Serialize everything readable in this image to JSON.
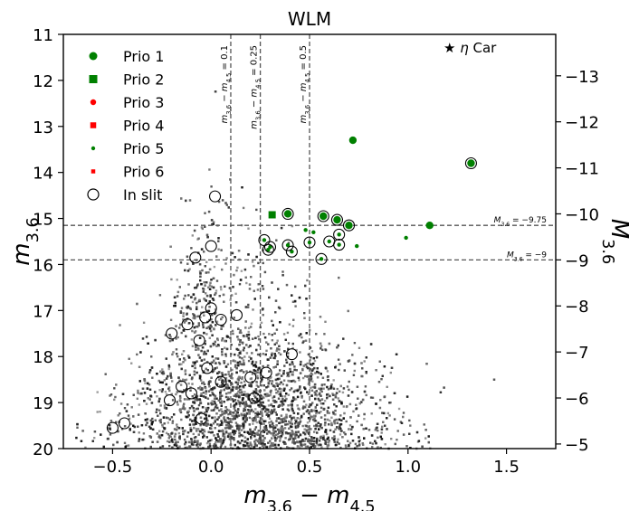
{
  "chart_data": {
    "type": "scatter",
    "title": "WLM",
    "xlabel": "m_{3.6} - m_{4.5}",
    "ylabel": "m_{3.6}",
    "ylabel_right": "M_{3.6}",
    "xlim": [
      -0.75,
      1.75
    ],
    "ylim": [
      20,
      11
    ],
    "right_ylim": [
      -4.9,
      -13.9
    ],
    "x_ticks": [
      -0.5,
      0.0,
      0.5,
      1.0,
      1.5
    ],
    "x_tick_labels": [
      "−0.5",
      "0.0",
      "0.5",
      "1.0",
      "1.5"
    ],
    "y_ticks": [
      11,
      12,
      13,
      14,
      15,
      16,
      17,
      18,
      19,
      20
    ],
    "y_tick_labels": [
      "11",
      "12",
      "13",
      "14",
      "15",
      "16",
      "17",
      "18",
      "19",
      "20"
    ],
    "right_ticks": [
      -5,
      -6,
      -7,
      -8,
      -9,
      -10,
      -11,
      -12,
      -13
    ],
    "right_tick_labels": [
      "−5",
      "−6",
      "−7",
      "−8",
      "−9",
      "−10",
      "−11",
      "−12",
      "−13"
    ],
    "grid": false,
    "legend_position": "top-left",
    "legend": [
      {
        "label": "Prio 1",
        "marker": "circle",
        "color": "#008000",
        "size": "large"
      },
      {
        "label": "Prio 2",
        "marker": "square",
        "color": "#008000",
        "size": "large"
      },
      {
        "label": "Prio 3",
        "marker": "circle",
        "color": "#ff0000",
        "size": "medium"
      },
      {
        "label": "Prio 4",
        "marker": "square",
        "color": "#ff0000",
        "size": "medium"
      },
      {
        "label": "Prio 5",
        "marker": "circle",
        "color": "#008000",
        "size": "small"
      },
      {
        "label": "Prio 6",
        "marker": "square",
        "color": "#ff0000",
        "size": "small"
      },
      {
        "label": "In slit",
        "marker": "open-circle",
        "color": "#000000",
        "size": "large"
      }
    ],
    "vertical_lines": [
      {
        "x": 0.1,
        "label": "m_{3.6} - m_{4.5} = 0.1"
      },
      {
        "x": 0.25,
        "label": "m_{3.6} - m_{4.5} = 0.25"
      },
      {
        "x": 0.5,
        "label": "m_{3.6} - m_{4.5} = 0.5"
      }
    ],
    "horizontal_lines": [
      {
        "y": 15.15,
        "label": "M_{3.6} = −9.75"
      },
      {
        "y": 15.9,
        "label": "M_{3.6} = −9"
      }
    ],
    "annotations": [
      {
        "text": "★ η Car",
        "x": 1.2,
        "y": 11.25
      }
    ],
    "background_stars": {
      "count": 5200,
      "color": "#000000",
      "description_free": true
    },
    "series": [
      {
        "name": "Prio 1",
        "marker": "circle",
        "color": "#008000",
        "points": [
          [
            0.72,
            13.3
          ],
          [
            1.32,
            13.8
          ],
          [
            0.39,
            14.9
          ],
          [
            0.57,
            14.95
          ],
          [
            0.64,
            15.03
          ],
          [
            0.7,
            15.15
          ],
          [
            1.11,
            15.15
          ]
        ]
      },
      {
        "name": "Prio 2",
        "marker": "square",
        "color": "#008000",
        "points": [
          [
            0.31,
            14.92
          ]
        ]
      },
      {
        "name": "Prio 5",
        "marker": "circle",
        "color": "#008000",
        "points": [
          [
            0.48,
            15.25
          ],
          [
            0.52,
            15.3
          ],
          [
            0.27,
            15.47
          ],
          [
            0.5,
            15.52
          ],
          [
            0.6,
            15.5
          ],
          [
            0.65,
            15.57
          ],
          [
            0.74,
            15.6
          ],
          [
            0.39,
            15.58
          ],
          [
            0.3,
            15.62
          ],
          [
            0.29,
            15.68
          ],
          [
            0.41,
            15.72
          ],
          [
            0.56,
            15.88
          ],
          [
            0.99,
            15.42
          ],
          [
            0.65,
            15.35
          ]
        ]
      },
      {
        "name": "In slit",
        "marker": "open-circle",
        "color": "#000000",
        "points": [
          [
            1.32,
            13.8
          ],
          [
            0.39,
            14.9
          ],
          [
            0.57,
            14.95
          ],
          [
            0.64,
            15.03
          ],
          [
            0.7,
            15.15
          ],
          [
            0.27,
            15.47
          ],
          [
            0.5,
            15.52
          ],
          [
            0.6,
            15.5
          ],
          [
            0.65,
            15.57
          ],
          [
            0.39,
            15.58
          ],
          [
            0.3,
            15.62
          ],
          [
            0.29,
            15.68
          ],
          [
            0.41,
            15.72
          ],
          [
            0.56,
            15.88
          ],
          [
            0.65,
            15.35
          ],
          [
            0.02,
            14.52
          ],
          [
            0.0,
            15.6
          ],
          [
            -0.08,
            15.85
          ],
          [
            -0.12,
            17.3
          ],
          [
            -0.03,
            17.15
          ],
          [
            0.0,
            16.95
          ],
          [
            0.13,
            17.1
          ],
          [
            -0.06,
            17.65
          ],
          [
            -0.2,
            17.5
          ],
          [
            0.41,
            17.95
          ],
          [
            -0.5,
            19.55
          ],
          [
            -0.44,
            19.45
          ],
          [
            -0.15,
            18.65
          ],
          [
            -0.1,
            18.8
          ],
          [
            0.2,
            18.45
          ],
          [
            0.28,
            18.35
          ],
          [
            -0.05,
            19.35
          ],
          [
            0.05,
            18.55
          ],
          [
            0.22,
            18.9
          ],
          [
            -0.21,
            18.95
          ],
          [
            0.05,
            17.2
          ],
          [
            -0.02,
            18.25
          ]
        ]
      }
    ]
  }
}
